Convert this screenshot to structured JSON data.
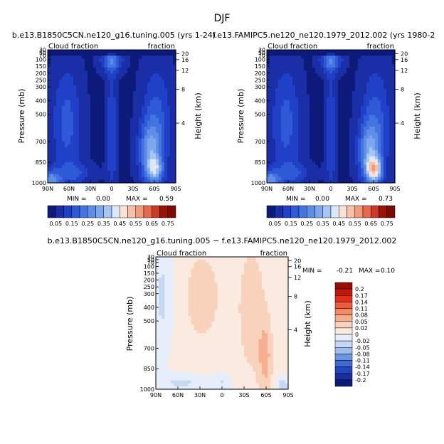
{
  "page_title": "DJF",
  "chart_data": [
    {
      "type": "contour",
      "title": "b.e13.B1850C5CN.ne120_g16.tuning.005 (yrs 1-24)",
      "left_label": "Cloud fraction",
      "right_label": "fraction",
      "ylabel": "Pressure (mb)",
      "y2label": "Height (km)",
      "x_ticks": [
        "90N",
        "60N",
        "30N",
        "0",
        "30S",
        "60S",
        "90S"
      ],
      "x_values": [
        90,
        60,
        30,
        0,
        -30,
        -60,
        -90
      ],
      "y_ticks": [
        "30",
        "50",
        "70",
        "100",
        "150",
        "200",
        "250",
        "300",
        "400",
        "500",
        "700",
        "850",
        "1000"
      ],
      "y_values": [
        30,
        50,
        70,
        100,
        150,
        200,
        250,
        300,
        400,
        500,
        700,
        850,
        1000
      ],
      "height_ticks": [
        "20",
        "16",
        "12",
        "8",
        "4"
      ],
      "height_values": [
        20,
        16,
        12,
        8,
        4
      ],
      "min_label": "MIN =",
      "min_value": "0.00",
      "max_label": "MAX =",
      "max_value": "0.59",
      "levels": [
        "0.05",
        "0.1",
        "0.15",
        "0.2",
        "0.25",
        "0.3",
        "0.35",
        "0.4",
        "0.45",
        "0.5",
        "0.55",
        "0.6",
        "0.65",
        "0.7",
        "0.75"
      ],
      "colorbar_labels": [
        "0.05",
        "0.15",
        "0.25",
        "0.35",
        "0.45",
        "0.55",
        "0.65",
        "0.75"
      ]
    },
    {
      "type": "contour",
      "title": "f.e13.FAMIPC5.ne120_ne120.1979_2012.002 (yrs 1980-2",
      "left_label": "Cloud fraction",
      "right_label": "fraction",
      "ylabel": "Pressure (mb)",
      "y2label": "Height (km)",
      "x_ticks": [
        "90N",
        "60N",
        "30N",
        "0",
        "30S",
        "60S",
        "90S"
      ],
      "x_values": [
        90,
        60,
        30,
        0,
        -30,
        -60,
        -90
      ],
      "y_ticks": [
        "30",
        "50",
        "70",
        "100",
        "150",
        "200",
        "250",
        "300",
        "400",
        "500",
        "700",
        "850",
        "1000"
      ],
      "y_values": [
        30,
        50,
        70,
        100,
        150,
        200,
        250,
        300,
        400,
        500,
        700,
        850,
        1000
      ],
      "height_ticks": [
        "20",
        "16",
        "12",
        "8",
        "4"
      ],
      "height_values": [
        20,
        16,
        12,
        8,
        4
      ],
      "min_label": "MIN =",
      "min_value": "0.00",
      "max_label": "MAX =",
      "max_value": "0.73",
      "levels": [
        "0.05",
        "0.1",
        "0.15",
        "0.2",
        "0.25",
        "0.3",
        "0.35",
        "0.4",
        "0.45",
        "0.5",
        "0.55",
        "0.6",
        "0.65",
        "0.7",
        "0.75"
      ],
      "colorbar_labels": [
        "0.05",
        "0.15",
        "0.25",
        "0.35",
        "0.45",
        "0.55",
        "0.65",
        "0.75"
      ]
    },
    {
      "type": "contour",
      "title": "b.e13.B1850C5CN.ne120_g16.tuning.005 − f.e13.FAMIPC5.ne120_ne120.1979_2012.002",
      "left_label": "Cloud fraction",
      "right_label": "fraction",
      "ylabel": "Pressure (mb)",
      "y2label": "Height (km)",
      "x_ticks": [
        "90N",
        "60N",
        "30N",
        "0",
        "30S",
        "60S",
        "90S"
      ],
      "x_values": [
        90,
        60,
        30,
        0,
        -30,
        -60,
        -90
      ],
      "y_ticks": [
        "30",
        "50",
        "70",
        "100",
        "150",
        "200",
        "250",
        "300",
        "400",
        "500",
        "700",
        "850",
        "1000"
      ],
      "y_values": [
        30,
        50,
        70,
        100,
        150,
        200,
        250,
        300,
        400,
        500,
        700,
        850,
        1000
      ],
      "height_ticks": [
        "20",
        "16",
        "12",
        "8",
        "4"
      ],
      "height_values": [
        20,
        16,
        12,
        8,
        4
      ],
      "min_label": "MIN =",
      "min_value": "-0.21",
      "max_label": "MAX =",
      "max_value": "0.10",
      "levels": [
        "0.2",
        "0.17",
        "0.14",
        "0.11",
        "0.08",
        "0.05",
        "0.02",
        "0",
        "-0.02",
        "-0.05",
        "-0.08",
        "-0.11",
        "-0.14",
        "-0.17",
        "-0.2"
      ],
      "colorbar_labels": [
        "0.2",
        "0.17",
        "0.14",
        "0.11",
        "0.08",
        "0.05",
        "0.02",
        "0",
        "-0.02",
        "-0.05",
        "-0.08",
        "-0.11",
        "-0.14",
        "-0.17",
        "-0.2"
      ]
    }
  ],
  "palette": {
    "abs": [
      "#0d1a7a",
      "#1a2ea8",
      "#2040c8",
      "#2e5ad8",
      "#4474e0",
      "#5e8ee6",
      "#7ea8ee",
      "#a6c6f4",
      "#dce8fa",
      "#fbe2d6",
      "#f8c0a6",
      "#f29a7c",
      "#e66a4c",
      "#cc3a26",
      "#9a1208",
      "#7a0a02"
    ],
    "diff": [
      "#9a0d04",
      "#c11a0c",
      "#e0301a",
      "#ef5a3a",
      "#f38a66",
      "#f6ae8e",
      "#f9d2bc",
      "#fbeadf",
      "#e6eefb",
      "#c6d8f4",
      "#9ebcec",
      "#6c96e2",
      "#3f6ad4",
      "#2246bd",
      "#1a2ea0",
      "#0d1a7a"
    ]
  }
}
